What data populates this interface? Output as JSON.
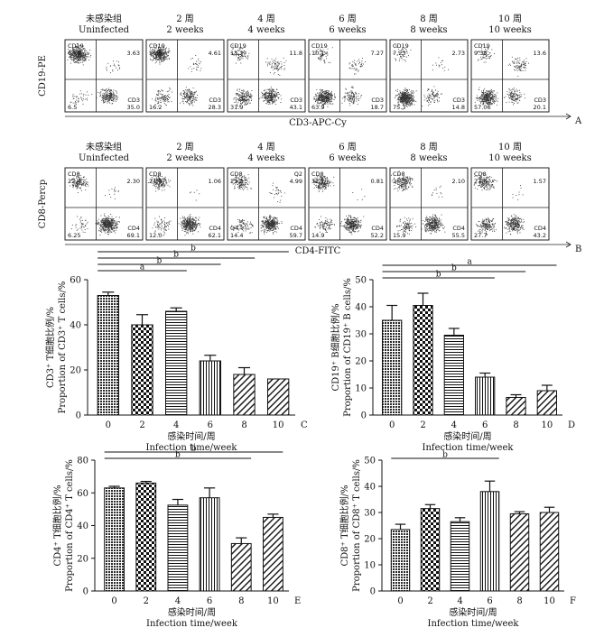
{
  "flow_a": {
    "panel_letter": "A",
    "y_axis_label": "CD19-PE",
    "x_axis_label": "CD3-APC-Cy",
    "panels": [
      {
        "title_zh": "未感染组",
        "title_en": "Uninfected",
        "ul_label": "CD19",
        "ul_value": "64.9",
        "ur_value": "3.63",
        "lr_label": "CD3",
        "lr_value": "35.0",
        "ll_value": "6.5"
      },
      {
        "title_zh": "2 周",
        "title_en": "2  weeks",
        "ul_label": "CD19",
        "ul_value": "56.9",
        "ur_value": "4.61",
        "lr_label": "CD3",
        "lr_value": "28.3",
        "ll_value": "16.2"
      },
      {
        "title_zh": "4 周",
        "title_en": "4  weeks",
        "ul_label": "CD19",
        "ul_value": "13.2",
        "ur_value": "11.8",
        "lr_label": "CD3",
        "lr_value": "43.1",
        "ll_value": "31.9"
      },
      {
        "title_zh": "6 周",
        "title_en": "6  weeks",
        "ul_label": "CD19",
        "ul_value": "10.1",
        "ur_value": "7.27",
        "lr_label": "CD3",
        "lr_value": "18.7",
        "ll_value": "63.9"
      },
      {
        "title_zh": "8 周",
        "title_en": "8  weeks",
        "ul_label": "CD19",
        "ul_value": "7.23",
        "ur_value": "2.73",
        "lr_label": "CD3",
        "lr_value": "14.8",
        "ll_value": "75.3"
      },
      {
        "title_zh": "10 周",
        "title_en": "10  weeks",
        "ul_label": "CD19",
        "ul_value": "9.38",
        "ur_value": "13.6",
        "lr_label": "CD3",
        "lr_value": "20.1",
        "ll_value": "57.06"
      }
    ]
  },
  "flow_b": {
    "panel_letter": "B",
    "y_axis_label": "CD8-Percp",
    "x_axis_label": "CD4-FITC",
    "panels": [
      {
        "title_zh": "未感染组",
        "title_en": "Uninfected",
        "ul_label": "CD8",
        "ul_value": "22.4",
        "ur_value": "2.30",
        "lr_label": "CD4",
        "lr_value": "69.1",
        "ll_value": "6.25",
        "ur_label": "",
        "ll_label": ""
      },
      {
        "title_zh": "2 周",
        "title_en": "2  weeks",
        "ul_label": "CD8",
        "ul_value": "24.8",
        "ur_value": "1.06",
        "lr_label": "CD4",
        "lr_value": "62.1",
        "ll_value": "12.0",
        "ur_label": "",
        "ll_label": ""
      },
      {
        "title_zh": "4 周",
        "title_en": "4  weeks",
        "ul_label": "CD8",
        "ul_value": "21.3",
        "ur_value": "4.99",
        "lr_label": "CD4",
        "lr_value": "59.7",
        "ll_value": "14.4",
        "ur_label": "Q2",
        "ll_label": "Q4"
      },
      {
        "title_zh": "6 周",
        "title_en": "6  weeks",
        "ul_label": "CD8",
        "ul_value": "32.1",
        "ur_value": "0.81",
        "lr_label": "CD4",
        "lr_value": "52.2",
        "ll_value": "14.9",
        "ur_label": "",
        "ll_label": ""
      },
      {
        "title_zh": "8 周",
        "title_en": "8  weeks",
        "ul_label": "CD8",
        "ul_value": "26.5",
        "ur_value": "2.10",
        "lr_label": "CD4",
        "lr_value": "55.5",
        "ll_value": "15.9",
        "ur_label": "",
        "ll_label": ""
      },
      {
        "title_zh": "10 周",
        "title_en": "10  weeks",
        "ul_label": "CD8",
        "ul_value": "27.5",
        "ur_value": "1.57",
        "lr_label": "CD4",
        "lr_value": "43.2",
        "ll_value": "27.7",
        "ur_label": "",
        "ll_label": ""
      }
    ]
  },
  "chart_data": [
    {
      "type": "bar",
      "panel_letter": "C",
      "ylabel_zh": "CD3⁺ T细胞比例/%",
      "ylabel_en": "Proportion of CD3⁺ T cells/%",
      "xlabel_zh": "感染时间/周",
      "xlabel_en": "Infection time/week",
      "categories": [
        "0",
        "2",
        "4",
        "6",
        "8",
        "10"
      ],
      "values": [
        53,
        40,
        46,
        24,
        18,
        16
      ],
      "errors": [
        1.5,
        4.5,
        1.5,
        2.5,
        3.0,
        0
      ],
      "ylim": [
        0,
        60
      ],
      "yticks": [
        "0",
        "20",
        "40",
        "60"
      ],
      "patterns": [
        "dots",
        "checker",
        "hlines",
        "vlines",
        "diag",
        "diag"
      ],
      "significance": [
        {
          "from": "0",
          "to": "4",
          "label": "a"
        },
        {
          "from": "0",
          "to": "6",
          "label": "b"
        },
        {
          "from": "0",
          "to": "8",
          "label": "b"
        },
        {
          "from": "0",
          "to": "10",
          "label": "b"
        }
      ]
    },
    {
      "type": "bar",
      "panel_letter": "D",
      "ylabel_zh": "CD19⁺ B细胞比例/%",
      "ylabel_en": "Proportion of CD19⁺ B cells/%",
      "xlabel_zh": "感染时间/周",
      "xlabel_en": "Infection time/week",
      "categories": [
        "0",
        "2",
        "4",
        "6",
        "8",
        "10"
      ],
      "values": [
        35,
        40.5,
        29.5,
        14,
        6.5,
        9
      ],
      "errors": [
        5.5,
        4.5,
        2.5,
        1.5,
        1.0,
        2.0
      ],
      "ylim": [
        0,
        50
      ],
      "yticks": [
        "0",
        "10",
        "20",
        "30",
        "40",
        "50"
      ],
      "patterns": [
        "dots",
        "checker",
        "hlines",
        "vlines",
        "diag",
        "diag"
      ],
      "significance": [
        {
          "from": "0",
          "to": "6",
          "label": "b"
        },
        {
          "from": "0",
          "to": "8",
          "label": "b"
        },
        {
          "from": "0",
          "to": "10",
          "label": "a"
        }
      ]
    },
    {
      "type": "bar",
      "panel_letter": "E",
      "ylabel_zh": "CD4⁺ T细胞比例/%",
      "ylabel_en": "Proportion of CD4⁺ T cells/%",
      "xlabel_zh": "感染时间/周",
      "xlabel_en": "Infection time/week",
      "categories": [
        "0",
        "2",
        "4",
        "6",
        "8",
        "10"
      ],
      "values": [
        63,
        66,
        52.5,
        57,
        29,
        45
      ],
      "errors": [
        1.0,
        1.0,
        3.5,
        6.0,
        3.5,
        2.0
      ],
      "ylim": [
        0,
        80
      ],
      "yticks": [
        "0",
        "20",
        "40",
        "60",
        "80"
      ],
      "patterns": [
        "dots",
        "checker",
        "hlines",
        "vlines",
        "diag",
        "diag"
      ],
      "significance": [
        {
          "from": "0",
          "to": "8",
          "label": "b"
        },
        {
          "from": "0",
          "to": "10",
          "label": "b"
        }
      ]
    },
    {
      "type": "bar",
      "panel_letter": "F",
      "ylabel_zh": "CD8⁺ T细胞比例/%",
      "ylabel_en": "Proportion of CD8⁺ T cells/%",
      "xlabel_zh": "感染时间/周",
      "xlabel_en": "Infection time/week",
      "categories": [
        "0",
        "2",
        "4",
        "6",
        "8",
        "10"
      ],
      "values": [
        23.5,
        31.5,
        26.5,
        38,
        29.5,
        30
      ],
      "errors": [
        2.0,
        1.5,
        1.5,
        4.0,
        0.8,
        2.0
      ],
      "ylim": [
        0,
        50
      ],
      "yticks": [
        "0",
        "10",
        "20",
        "30",
        "40",
        "50"
      ],
      "patterns": [
        "dots",
        "checker",
        "hlines",
        "vlines",
        "diag",
        "diag"
      ],
      "significance": [
        {
          "from": "0",
          "to": "6",
          "label": "b"
        }
      ]
    }
  ]
}
